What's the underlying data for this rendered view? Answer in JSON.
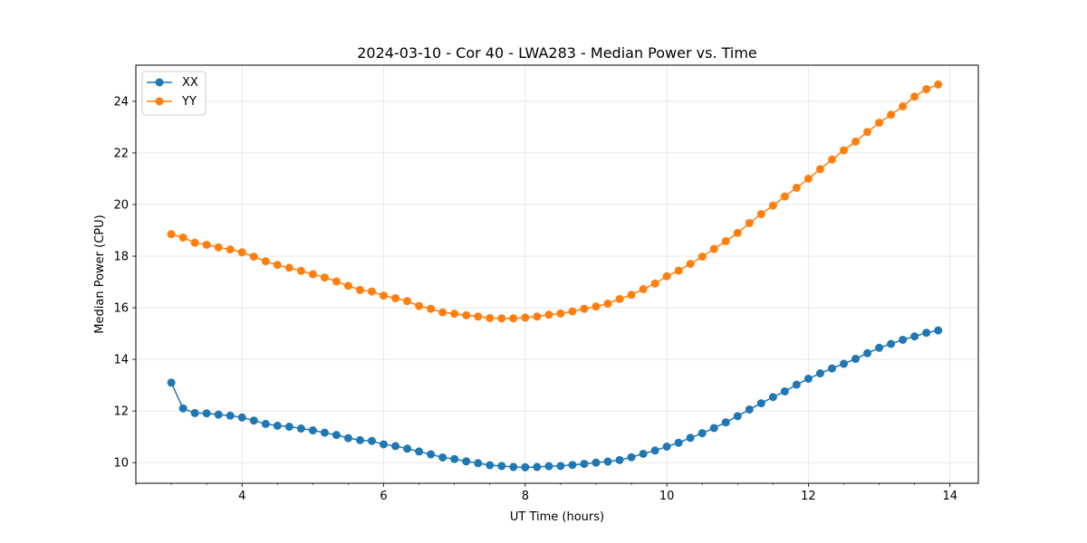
{
  "chart_data": {
    "type": "line",
    "title": "2024-03-10 - Cor 40 - LWA283 - Median Power vs. Time",
    "xlabel": "UT Time (hours)",
    "ylabel": "Median Power (CPU)",
    "xlim": [
      2.5,
      14.4
    ],
    "ylim": [
      9.2,
      25.4
    ],
    "xticks": [
      4,
      6,
      8,
      10,
      12,
      14
    ],
    "yticks": [
      10,
      12,
      14,
      16,
      18,
      20,
      22,
      24
    ],
    "grid": true,
    "legend_position": "top-left",
    "x": [
      3.0,
      3.1667,
      3.3333,
      3.5,
      3.6667,
      3.8333,
      4.0,
      4.1667,
      4.3333,
      4.5,
      4.6667,
      4.8333,
      5.0,
      5.1667,
      5.3333,
      5.5,
      5.6667,
      5.8333,
      6.0,
      6.1667,
      6.3333,
      6.5,
      6.6667,
      6.8333,
      7.0,
      7.1667,
      7.3333,
      7.5,
      7.6667,
      7.8333,
      8.0,
      8.1667,
      8.3333,
      8.5,
      8.6667,
      8.8333,
      9.0,
      9.1667,
      9.3333,
      9.5,
      9.6667,
      9.8333,
      10.0,
      10.1667,
      10.3333,
      10.5,
      10.6667,
      10.8333,
      11.0,
      11.1667,
      11.3333,
      11.5,
      11.6667,
      11.8333,
      12.0,
      12.1667,
      12.3333,
      12.5,
      12.6667,
      12.8333,
      13.0,
      13.1667,
      13.3333,
      13.5,
      13.6667,
      13.8333
    ],
    "series": [
      {
        "name": "XX",
        "color": "#1f77b4",
        "values": [
          13.1,
          12.1,
          11.92,
          11.91,
          11.86,
          11.82,
          11.75,
          11.63,
          11.5,
          11.43,
          11.39,
          11.32,
          11.25,
          11.16,
          11.07,
          10.95,
          10.87,
          10.84,
          10.71,
          10.64,
          10.54,
          10.43,
          10.32,
          10.2,
          10.14,
          10.05,
          9.98,
          9.9,
          9.87,
          9.83,
          9.82,
          9.83,
          9.86,
          9.87,
          9.91,
          9.95,
          10.0,
          10.04,
          10.1,
          10.21,
          10.34,
          10.47,
          10.62,
          10.77,
          10.96,
          11.14,
          11.34,
          11.56,
          11.8,
          12.06,
          12.3,
          12.54,
          12.76,
          13.02,
          13.25,
          13.46,
          13.65,
          13.83,
          14.02,
          14.24,
          14.45,
          14.6,
          14.76,
          14.89,
          15.03,
          15.12
        ]
      },
      {
        "name": "YY",
        "color": "#ff7f0e",
        "values": [
          18.85,
          18.72,
          18.52,
          18.44,
          18.34,
          18.26,
          18.15,
          17.98,
          17.8,
          17.66,
          17.55,
          17.43,
          17.3,
          17.17,
          17.02,
          16.85,
          16.69,
          16.63,
          16.47,
          16.37,
          16.26,
          16.07,
          15.96,
          15.82,
          15.77,
          15.71,
          15.66,
          15.6,
          15.59,
          15.59,
          15.62,
          15.66,
          15.73,
          15.78,
          15.86,
          15.96,
          16.05,
          16.16,
          16.34,
          16.5,
          16.72,
          16.94,
          17.22,
          17.44,
          17.7,
          17.98,
          18.28,
          18.58,
          18.9,
          19.28,
          19.63,
          19.96,
          20.31,
          20.65,
          21.0,
          21.37,
          21.74,
          22.1,
          22.44,
          22.81,
          23.17,
          23.48,
          23.8,
          24.18,
          24.47,
          24.65
        ]
      }
    ]
  }
}
